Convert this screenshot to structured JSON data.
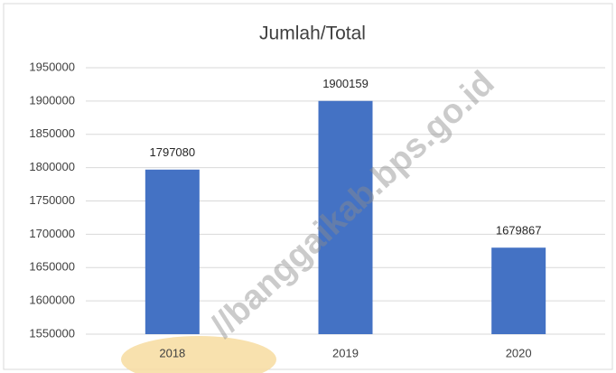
{
  "chart_data": {
    "type": "bar",
    "title": "Jumlah/Total",
    "categories": [
      "2018",
      "2019",
      "2020"
    ],
    "values": [
      1797080,
      1900159,
      1679867
    ],
    "color": "#4472c4",
    "ylim": [
      1550000,
      1950000
    ],
    "yticks": [
      1550000,
      1600000,
      1650000,
      1700000,
      1750000,
      1800000,
      1850000,
      1900000,
      1950000
    ],
    "grid": true,
    "data_labels": true
  },
  "watermark": "//banggaikab.bps.go.id"
}
